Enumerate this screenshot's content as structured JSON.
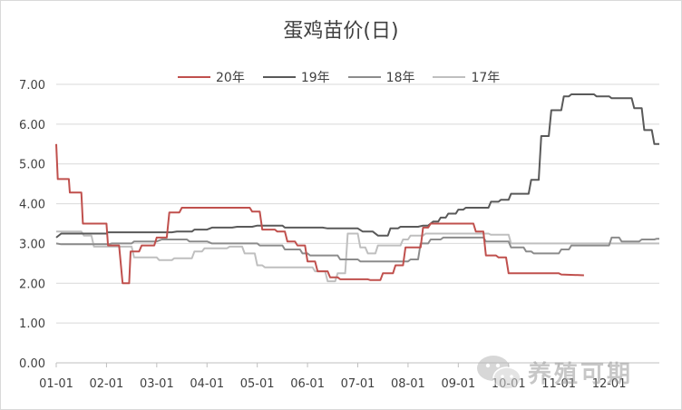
{
  "chart_data": {
    "type": "line",
    "title": "蛋鸡苗价(日)",
    "xlabel": "",
    "ylabel": "",
    "ylim": [
      0,
      7
    ],
    "yticks": [
      "0.00",
      "1.00",
      "2.00",
      "3.00",
      "4.00",
      "5.00",
      "6.00",
      "7.00"
    ],
    "xticks": [
      "01-01",
      "02-01",
      "03-01",
      "04-01",
      "05-01",
      "06-01",
      "07-01",
      "08-01",
      "09-01",
      "10-01",
      "11-01",
      "12-01"
    ],
    "grid": "horizontal",
    "legend_position": "top",
    "series": [
      {
        "name": "20年",
        "color": "#c0504d",
        "points": [
          [
            0,
            5.5
          ],
          [
            0.03,
            4.62
          ],
          [
            0.25,
            4.62
          ],
          [
            0.27,
            4.28
          ],
          [
            0.5,
            4.28
          ],
          [
            0.53,
            3.5
          ],
          [
            1.0,
            3.5
          ],
          [
            1.03,
            2.95
          ],
          [
            1.25,
            2.95
          ],
          [
            1.32,
            2.0
          ],
          [
            1.45,
            2.0
          ],
          [
            1.48,
            2.8
          ],
          [
            1.65,
            2.8
          ],
          [
            1.7,
            2.95
          ],
          [
            1.95,
            2.95
          ],
          [
            2.0,
            3.15
          ],
          [
            2.2,
            3.15
          ],
          [
            2.25,
            3.78
          ],
          [
            2.45,
            3.78
          ],
          [
            2.5,
            3.9
          ],
          [
            3.85,
            3.9
          ],
          [
            3.9,
            3.8
          ],
          [
            4.05,
            3.8
          ],
          [
            4.1,
            3.35
          ],
          [
            4.35,
            3.35
          ],
          [
            4.4,
            3.3
          ],
          [
            4.55,
            3.3
          ],
          [
            4.6,
            3.05
          ],
          [
            4.75,
            3.05
          ],
          [
            4.8,
            2.95
          ],
          [
            4.95,
            2.95
          ],
          [
            5.0,
            2.55
          ],
          [
            5.15,
            2.55
          ],
          [
            5.2,
            2.3
          ],
          [
            5.4,
            2.3
          ],
          [
            5.45,
            2.15
          ],
          [
            5.6,
            2.15
          ],
          [
            5.65,
            2.1
          ],
          [
            6.2,
            2.1
          ],
          [
            6.25,
            2.08
          ],
          [
            6.45,
            2.08
          ],
          [
            6.5,
            2.25
          ],
          [
            6.7,
            2.25
          ],
          [
            6.75,
            2.45
          ],
          [
            6.9,
            2.45
          ],
          [
            6.95,
            2.9
          ],
          [
            7.25,
            2.9
          ],
          [
            7.3,
            3.4
          ],
          [
            7.4,
            3.4
          ],
          [
            7.45,
            3.5
          ],
          [
            8.3,
            3.5
          ],
          [
            8.35,
            3.3
          ],
          [
            8.5,
            3.3
          ],
          [
            8.55,
            2.7
          ],
          [
            8.75,
            2.7
          ],
          [
            8.8,
            2.65
          ],
          [
            8.95,
            2.65
          ],
          [
            9.0,
            2.25
          ],
          [
            10.0,
            2.25
          ],
          [
            10.05,
            2.22
          ],
          [
            10.5,
            2.2
          ]
        ]
      },
      {
        "name": "19年",
        "color": "#595959",
        "points": [
          [
            0,
            3.15
          ],
          [
            0.1,
            3.25
          ],
          [
            1.0,
            3.25
          ],
          [
            1.02,
            3.28
          ],
          [
            2.3,
            3.28
          ],
          [
            2.4,
            3.3
          ],
          [
            2.7,
            3.3
          ],
          [
            2.75,
            3.35
          ],
          [
            3.0,
            3.35
          ],
          [
            3.1,
            3.4
          ],
          [
            3.5,
            3.4
          ],
          [
            3.6,
            3.42
          ],
          [
            3.9,
            3.42
          ],
          [
            4.0,
            3.45
          ],
          [
            4.5,
            3.45
          ],
          [
            4.55,
            3.4
          ],
          [
            5.3,
            3.4
          ],
          [
            5.4,
            3.38
          ],
          [
            6.0,
            3.38
          ],
          [
            6.1,
            3.3
          ],
          [
            6.3,
            3.3
          ],
          [
            6.4,
            3.2
          ],
          [
            6.6,
            3.2
          ],
          [
            6.65,
            3.38
          ],
          [
            6.8,
            3.38
          ],
          [
            6.85,
            3.42
          ],
          [
            7.2,
            3.42
          ],
          [
            7.3,
            3.45
          ],
          [
            7.4,
            3.45
          ],
          [
            7.5,
            3.55
          ],
          [
            7.6,
            3.55
          ],
          [
            7.65,
            3.65
          ],
          [
            7.75,
            3.65
          ],
          [
            7.8,
            3.75
          ],
          [
            7.95,
            3.75
          ],
          [
            8.0,
            3.85
          ],
          [
            8.1,
            3.85
          ],
          [
            8.15,
            3.9
          ],
          [
            8.6,
            3.9
          ],
          [
            8.65,
            4.05
          ],
          [
            8.8,
            4.05
          ],
          [
            8.85,
            4.1
          ],
          [
            9.0,
            4.1
          ],
          [
            9.05,
            4.25
          ],
          [
            9.4,
            4.25
          ],
          [
            9.45,
            4.6
          ],
          [
            9.6,
            4.6
          ],
          [
            9.65,
            5.7
          ],
          [
            9.8,
            5.7
          ],
          [
            9.85,
            6.35
          ],
          [
            10.05,
            6.35
          ],
          [
            10.1,
            6.7
          ],
          [
            10.2,
            6.7
          ],
          [
            10.25,
            6.75
          ],
          [
            10.7,
            6.75
          ],
          [
            10.75,
            6.7
          ],
          [
            11.0,
            6.7
          ],
          [
            11.05,
            6.65
          ],
          [
            11.45,
            6.65
          ],
          [
            11.5,
            6.4
          ],
          [
            11.65,
            6.4
          ],
          [
            11.7,
            5.85
          ],
          [
            11.85,
            5.85
          ],
          [
            11.9,
            5.5
          ],
          [
            12.0,
            5.5
          ]
        ]
      },
      {
        "name": "18年",
        "color": "#8c8c8c",
        "points": [
          [
            0,
            3.0
          ],
          [
            0.1,
            2.98
          ],
          [
            1.05,
            2.98
          ],
          [
            1.1,
            3.0
          ],
          [
            1.5,
            3.0
          ],
          [
            1.55,
            3.05
          ],
          [
            2.0,
            3.05
          ],
          [
            2.1,
            3.1
          ],
          [
            2.6,
            3.1
          ],
          [
            2.65,
            3.05
          ],
          [
            3.0,
            3.05
          ],
          [
            3.1,
            3.0
          ],
          [
            4.0,
            3.0
          ],
          [
            4.05,
            2.95
          ],
          [
            4.5,
            2.95
          ],
          [
            4.55,
            2.85
          ],
          [
            4.85,
            2.85
          ],
          [
            4.9,
            2.75
          ],
          [
            5.0,
            2.75
          ],
          [
            5.05,
            2.7
          ],
          [
            5.6,
            2.7
          ],
          [
            5.65,
            2.6
          ],
          [
            6.0,
            2.6
          ],
          [
            6.05,
            2.55
          ],
          [
            7.0,
            2.55
          ],
          [
            7.05,
            2.6
          ],
          [
            7.2,
            2.6
          ],
          [
            7.25,
            3.0
          ],
          [
            7.4,
            3.0
          ],
          [
            7.45,
            3.1
          ],
          [
            7.65,
            3.1
          ],
          [
            7.7,
            3.15
          ],
          [
            8.5,
            3.15
          ],
          [
            8.55,
            3.05
          ],
          [
            9.0,
            3.05
          ],
          [
            9.05,
            2.9
          ],
          [
            9.3,
            2.9
          ],
          [
            9.35,
            2.8
          ],
          [
            9.45,
            2.8
          ],
          [
            9.5,
            2.75
          ],
          [
            10.0,
            2.75
          ],
          [
            10.05,
            2.85
          ],
          [
            10.2,
            2.85
          ],
          [
            10.25,
            2.95
          ],
          [
            11.0,
            2.95
          ],
          [
            11.05,
            3.15
          ],
          [
            11.2,
            3.15
          ],
          [
            11.25,
            3.05
          ],
          [
            11.6,
            3.05
          ],
          [
            11.65,
            3.1
          ],
          [
            11.9,
            3.1
          ],
          [
            11.95,
            3.12
          ],
          [
            12.0,
            3.12
          ]
        ]
      },
      {
        "name": "17年",
        "color": "#bfbfbf",
        "points": [
          [
            0,
            3.3
          ],
          [
            0.5,
            3.3
          ],
          [
            0.55,
            3.2
          ],
          [
            0.7,
            3.2
          ],
          [
            0.75,
            2.92
          ],
          [
            1.5,
            2.92
          ],
          [
            1.55,
            2.65
          ],
          [
            2.0,
            2.65
          ],
          [
            2.05,
            2.58
          ],
          [
            2.3,
            2.58
          ],
          [
            2.35,
            2.63
          ],
          [
            2.7,
            2.63
          ],
          [
            2.75,
            2.8
          ],
          [
            2.9,
            2.8
          ],
          [
            2.95,
            2.88
          ],
          [
            3.4,
            2.88
          ],
          [
            3.45,
            2.92
          ],
          [
            3.7,
            2.92
          ],
          [
            3.75,
            2.75
          ],
          [
            3.95,
            2.75
          ],
          [
            4.0,
            2.45
          ],
          [
            4.1,
            2.45
          ],
          [
            4.15,
            2.4
          ],
          [
            5.1,
            2.4
          ],
          [
            5.15,
            2.3
          ],
          [
            5.35,
            2.3
          ],
          [
            5.4,
            2.05
          ],
          [
            5.55,
            2.05
          ],
          [
            5.6,
            2.25
          ],
          [
            5.75,
            2.25
          ],
          [
            5.8,
            3.25
          ],
          [
            6.0,
            3.25
          ],
          [
            6.05,
            2.9
          ],
          [
            6.15,
            2.9
          ],
          [
            6.2,
            2.75
          ],
          [
            6.35,
            2.75
          ],
          [
            6.4,
            2.95
          ],
          [
            6.85,
            2.95
          ],
          [
            6.9,
            3.1
          ],
          [
            7.0,
            3.1
          ],
          [
            7.05,
            3.2
          ],
          [
            7.3,
            3.2
          ],
          [
            7.35,
            3.25
          ],
          [
            8.6,
            3.25
          ],
          [
            8.65,
            3.22
          ],
          [
            9.0,
            3.22
          ],
          [
            9.05,
            3.0
          ],
          [
            12.0,
            3.0
          ]
        ]
      }
    ]
  },
  "watermark": {
    "text": "养殖可期",
    "icon": "wechat-icon"
  }
}
